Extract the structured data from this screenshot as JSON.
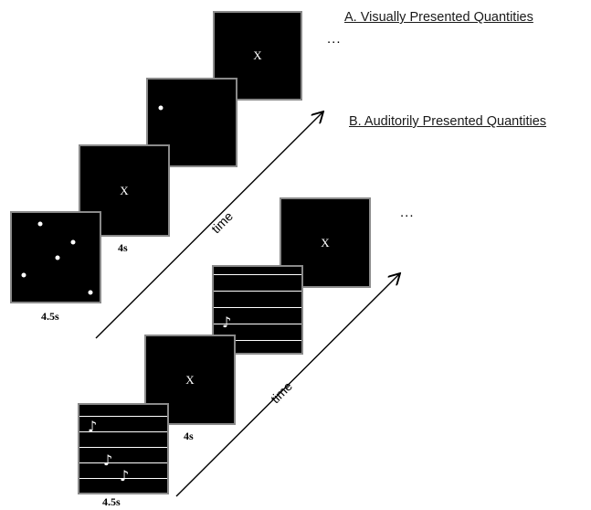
{
  "sections": {
    "visual": {
      "heading": "A. Visually Presented Quantities",
      "ellipsis": "...",
      "time_label": "time",
      "stimulus_duration": "4.5s",
      "fixation_duration": "4s",
      "fixation_symbol": "X"
    },
    "auditory": {
      "heading": "B. Auditorily Presented Quantities",
      "ellipsis": "...",
      "time_label": "time",
      "stimulus_duration": "4.5s",
      "fixation_duration": "4s",
      "fixation_symbol": "X"
    }
  },
  "icons": {
    "note": "music-note-icon"
  },
  "colors": {
    "panel": "#000000",
    "panel_border": "#8a8a8a",
    "marks": "#ffffff"
  }
}
